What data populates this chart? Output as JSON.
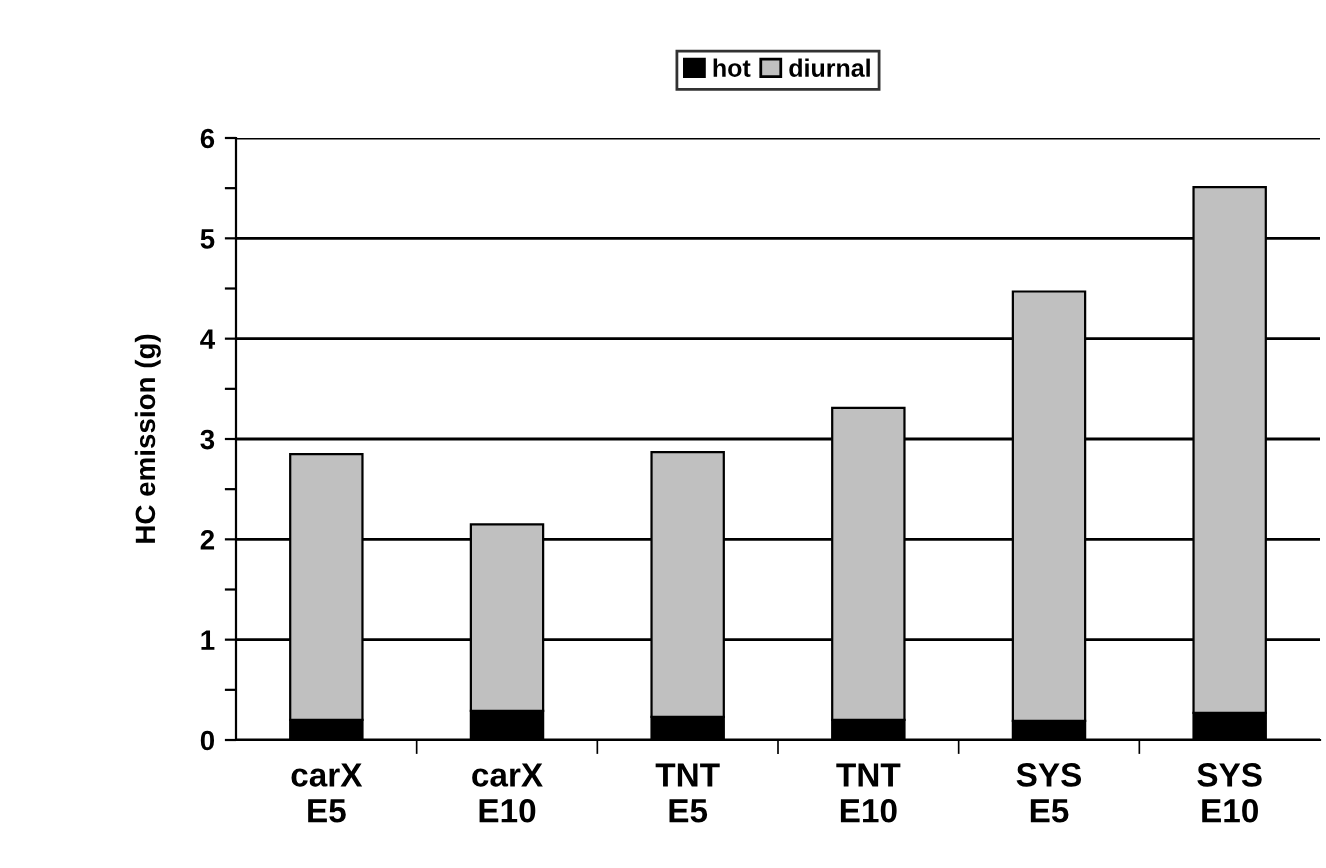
{
  "chart_data": {
    "type": "bar",
    "stacked": true,
    "ylabel": "HC emission (g)",
    "categories": [
      "carX\nE5",
      "carX\nE10",
      "TNT\nE5",
      "TNT\nE10",
      "SYS\nE5",
      "SYS\nE10"
    ],
    "series": [
      {
        "name": "hot",
        "color": "#000000",
        "values": [
          0.2,
          0.29,
          0.23,
          0.2,
          0.19,
          0.27
        ]
      },
      {
        "name": "diurnal",
        "color": "#c0c0c0",
        "values": [
          2.65,
          1.86,
          2.64,
          3.11,
          4.28,
          5.24
        ]
      }
    ],
    "ylim": [
      0,
      6
    ],
    "yticks": [
      0,
      {
        "value": 0.5,
        "label": null
      },
      1,
      {
        "value": 1.5,
        "label": null
      },
      2,
      {
        "value": 2.5,
        "label": null
      },
      3,
      {
        "value": 3.5,
        "label": null
      },
      4,
      {
        "value": 4.5,
        "label": null
      },
      5,
      {
        "value": 5.5,
        "label": null
      },
      6
    ],
    "grid": "y",
    "legend": "top"
  }
}
